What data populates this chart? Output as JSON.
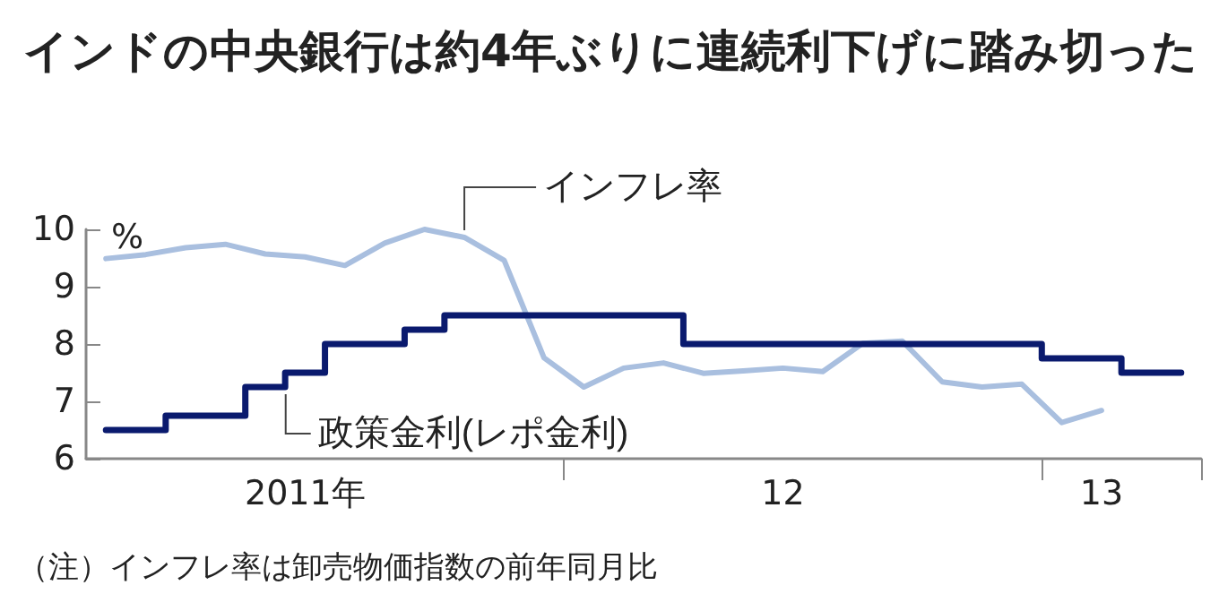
{
  "chart_data": {
    "type": "line",
    "title": "インドの中央銀行は約4年ぶりに連続利下げに踏み切った",
    "ylabel": "%",
    "categories": [
      null,
      null,
      null,
      null,
      null,
      "2011年",
      null,
      null,
      null,
      null,
      null,
      null,
      null,
      null,
      null,
      null,
      null,
      "12",
      null,
      null,
      null,
      null,
      null,
      null,
      null,
      "13",
      null,
      null
    ],
    "series": [
      {
        "name": "インフレ率",
        "color": "#a9bfdf",
        "values": [
          9.49,
          9.56,
          9.68,
          9.74,
          9.57,
          9.52,
          9.37,
          9.76,
          10.0,
          9.86,
          9.46,
          7.76,
          7.25,
          7.58,
          7.67,
          7.49,
          7.53,
          7.58,
          7.52,
          8.01,
          8.05,
          7.34,
          7.25,
          7.3,
          6.63,
          6.84,
          null,
          null
        ]
      },
      {
        "name": "政策金利(レポ金利)",
        "type": "step",
        "color": "#0a1a6e",
        "values": [
          6.5,
          6.5,
          6.75,
          6.75,
          7.25,
          7.5,
          8.0,
          8.0,
          8.25,
          8.5,
          8.5,
          8.5,
          8.5,
          8.5,
          8.5,
          8.0,
          8.0,
          8.0,
          8.0,
          8.0,
          8.0,
          8.0,
          8.0,
          8.0,
          7.75,
          7.75,
          7.5,
          7.5
        ]
      }
    ],
    "ylim": [
      6,
      10
    ],
    "yticks": [
      6,
      7,
      8,
      9,
      10
    ],
    "grid": false,
    "legend": false,
    "annotations": [
      "（注）インフレ率は卸売物価指数の前年同月比"
    ]
  }
}
